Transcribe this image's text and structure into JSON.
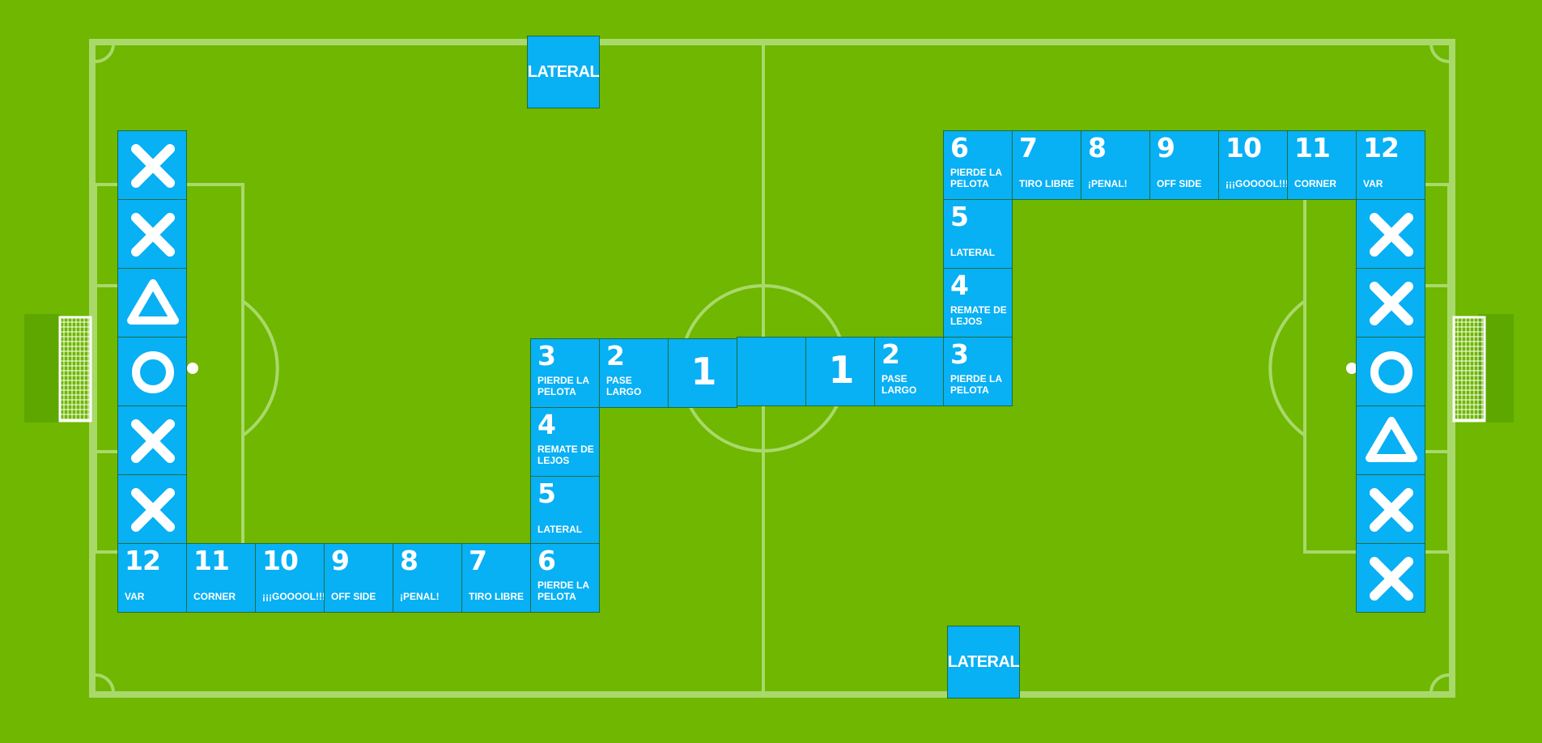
{
  "board": {
    "colors": {
      "grass": "#6fb700",
      "lines": "#a9d96a",
      "tile": "#08b0f4",
      "text": "#ffffff"
    },
    "lateral_top": "LATERAL",
    "lateral_bottom": "LATERAL",
    "left_path": [
      {
        "n": "1",
        "label": ""
      },
      {
        "n": "2",
        "label": "PASE LARGO"
      },
      {
        "n": "3",
        "label": "PIERDE LA PELOTA"
      },
      {
        "n": "4",
        "label": "REMATE DE LEJOS"
      },
      {
        "n": "5",
        "label": "LATERAL"
      },
      {
        "n": "6",
        "label": "PIERDE LA PELOTA"
      },
      {
        "n": "7",
        "label": "TIRO LIBRE"
      },
      {
        "n": "8",
        "label": "¡PENAL!"
      },
      {
        "n": "9",
        "label": "OFF SIDE"
      },
      {
        "n": "10",
        "label": "¡¡¡GOOOOL!!!"
      },
      {
        "n": "11",
        "label": "CORNER"
      },
      {
        "n": "12",
        "label": "VAR"
      }
    ],
    "right_path": [
      {
        "n": "1",
        "label": ""
      },
      {
        "n": "2",
        "label": "PASE LARGO"
      },
      {
        "n": "3",
        "label": "PIERDE LA PELOTA"
      },
      {
        "n": "4",
        "label": "REMATE DE LEJOS"
      },
      {
        "n": "5",
        "label": "LATERAL"
      },
      {
        "n": "6",
        "label": "PIERDE LA PELOTA"
      },
      {
        "n": "7",
        "label": "TIRO LIBRE"
      },
      {
        "n": "8",
        "label": "¡PENAL!"
      },
      {
        "n": "9",
        "label": "OFF SIDE"
      },
      {
        "n": "10",
        "label": "¡¡¡GOOOOL!!!"
      },
      {
        "n": "11",
        "label": "CORNER"
      },
      {
        "n": "12",
        "label": "VAR"
      }
    ],
    "left_column_symbols": [
      "x-icon",
      "x-icon",
      "triangle-icon",
      "circle-icon",
      "x-icon",
      "x-icon"
    ],
    "right_column_symbols": [
      "x-icon",
      "x-icon",
      "circle-icon",
      "triangle-icon",
      "x-icon",
      "x-icon"
    ]
  }
}
